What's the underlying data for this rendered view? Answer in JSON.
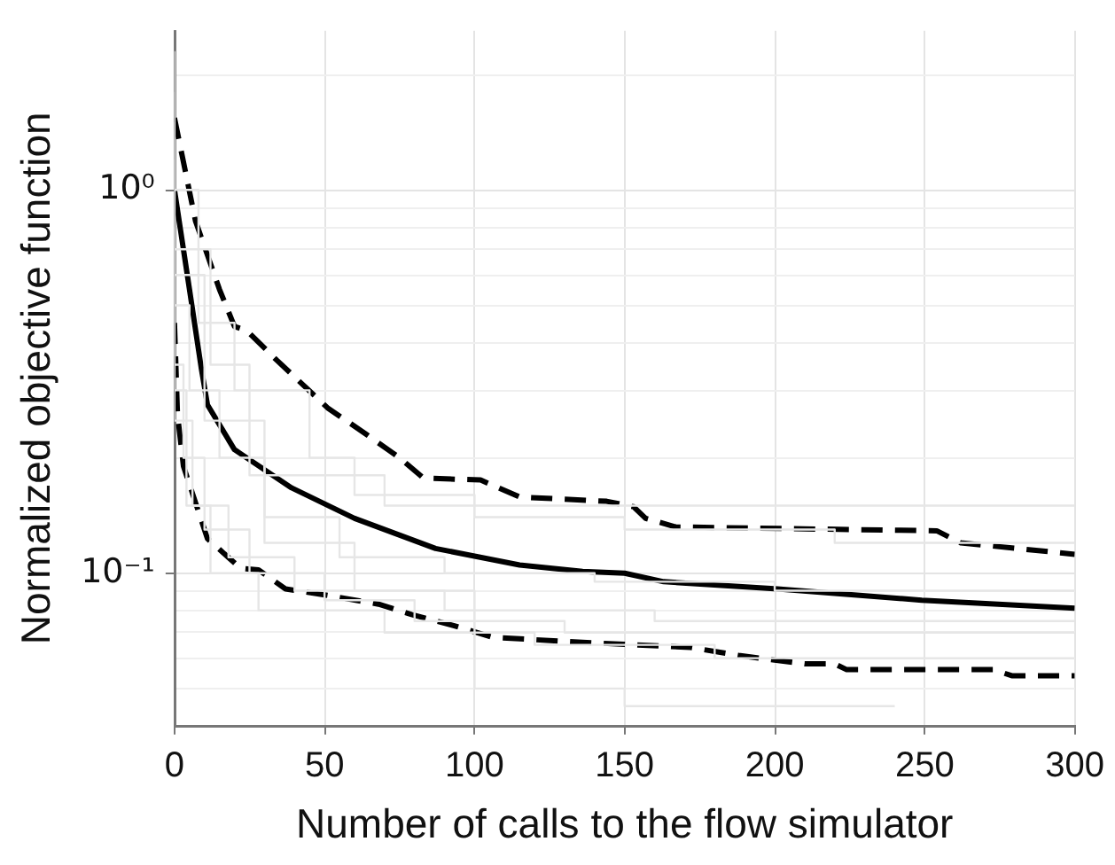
{
  "chart_data": {
    "type": "line",
    "xlabel": "Number of calls to the flow simulator",
    "ylabel": "Normalized objective function",
    "log": "y",
    "grid": true,
    "legend": false,
    "marker": "none",
    "xlim": [
      0,
      300
    ],
    "xticks": [
      0,
      50,
      100,
      150,
      200,
      250,
      300
    ],
    "ylim": [
      0.04,
      2.6
    ],
    "yticks": [
      {
        "value": 0.04,
        "label": null
      },
      {
        "value": 0.05,
        "label": null
      },
      {
        "value": 0.06,
        "label": null
      },
      {
        "value": 0.07,
        "label": null
      },
      {
        "value": 0.08,
        "label": null
      },
      {
        "value": 0.09,
        "label": null
      },
      {
        "value": 0.1,
        "label": "10⁻¹"
      },
      {
        "value": 0.2,
        "label": null
      },
      {
        "value": 0.3,
        "label": null
      },
      {
        "value": 0.4,
        "label": null
      },
      {
        "value": 0.5,
        "label": null
      },
      {
        "value": 0.6,
        "label": null
      },
      {
        "value": 0.7,
        "label": null
      },
      {
        "value": 0.8,
        "label": null
      },
      {
        "value": 0.9,
        "label": null
      },
      {
        "value": 1,
        "label": "10⁰"
      },
      {
        "value": 2,
        "label": null
      }
    ],
    "series": [
      {
        "type": "step",
        "color": "#e6e6e6",
        "x": [
          0,
          8,
          20,
          45,
          60,
          100,
          150,
          220,
          300
        ],
        "values": [
          2.3,
          1.0,
          0.45,
          0.3,
          0.2,
          0.16,
          0.14,
          0.13,
          0.12
        ]
      },
      {
        "type": "step",
        "color": "#e6e6e6",
        "x": [
          0,
          5,
          15,
          30,
          55,
          90,
          140,
          200,
          300
        ],
        "values": [
          1.2,
          0.5,
          0.3,
          0.2,
          0.14,
          0.11,
          0.1,
          0.095,
          0.09
        ]
      },
      {
        "type": "step",
        "color": "#e6e6e6",
        "x": [
          0,
          3,
          10,
          25,
          50,
          80,
          130,
          250,
          300
        ],
        "values": [
          0.8,
          0.35,
          0.2,
          0.13,
          0.1,
          0.085,
          0.075,
          0.07,
          0.07
        ]
      },
      {
        "type": "step",
        "color": "#e6e6e6",
        "x": [
          0,
          4,
          12,
          28,
          70,
          120,
          180,
          300
        ],
        "values": [
          1.0,
          0.3,
          0.15,
          0.1,
          0.08,
          0.07,
          0.065,
          0.06
        ]
      },
      {
        "type": "step",
        "color": "#e6e6e6",
        "x": [
          0,
          10,
          30,
          60,
          100,
          150,
          240
        ],
        "values": [
          1.5,
          0.6,
          0.25,
          0.12,
          0.09,
          0.05,
          0.045
        ]
      },
      {
        "type": "step",
        "color": "#e6e6e6",
        "x": [
          0,
          6,
          18,
          40,
          90,
          160,
          260,
          300
        ],
        "values": [
          0.6,
          0.25,
          0.15,
          0.11,
          0.09,
          0.08,
          0.075,
          0.075
        ]
      },
      {
        "type": "step",
        "color": "#e6e6e6",
        "x": [
          0,
          12,
          25,
          70,
          140,
          300
        ],
        "values": [
          1.8,
          0.7,
          0.35,
          0.18,
          0.15,
          0.15
        ]
      },
      {
        "type": "line",
        "color": "#000000",
        "line_style": "solid",
        "x": [
          0,
          5,
          9,
          11,
          20,
          39,
          60,
          87,
          115,
          136,
          150,
          163,
          201,
          249,
          300
        ],
        "values": [
          1.0,
          0.55,
          0.34,
          0.275,
          0.21,
          0.167,
          0.139,
          0.116,
          0.105,
          0.101,
          0.1,
          0.095,
          0.091,
          0.085,
          0.081
        ]
      },
      {
        "type": "line",
        "color": "#000000",
        "line_style": "dashed",
        "x": [
          0,
          7,
          15,
          20,
          24,
          34,
          51,
          64,
          75,
          83,
          102,
          115,
          144,
          153,
          157,
          167,
          254,
          262,
          300
        ],
        "values": [
          1.54,
          0.83,
          0.55,
          0.44,
          0.43,
          0.36,
          0.27,
          0.23,
          0.2,
          0.177,
          0.175,
          0.158,
          0.154,
          0.149,
          0.139,
          0.132,
          0.129,
          0.12,
          0.112
        ]
      },
      {
        "type": "line",
        "color": "#000000",
        "line_style": "dashed",
        "x": [
          0,
          1,
          3,
          11,
          22,
          28,
          37,
          53,
          68,
          79,
          93,
          106,
          136,
          172,
          188,
          210,
          220,
          224,
          273,
          279,
          300
        ],
        "values": [
          0.45,
          0.26,
          0.19,
          0.123,
          0.103,
          0.102,
          0.091,
          0.087,
          0.083,
          0.078,
          0.073,
          0.068,
          0.066,
          0.064,
          0.061,
          0.058,
          0.058,
          0.056,
          0.056,
          0.054,
          0.054
        ]
      }
    ]
  }
}
